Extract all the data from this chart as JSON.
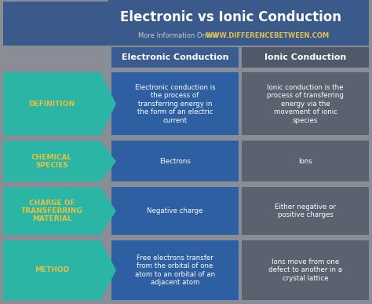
{
  "title": "Electronic vs Ionic Conduction",
  "subtitle_plain": "More Information Online",
  "subtitle_url": "WWW.DIFFERENCEBETWEEN.COM",
  "header_col1": "Electronic Conduction",
  "header_col2": "Ionic Conduction",
  "bg_color": "#888d96",
  "header_bg": "#3b5a8c",
  "title_text_color": "#ffffff",
  "subtitle_plain_color": "#c8c8c8",
  "subtitle_url_color": "#e8c040",
  "col1_bg": "#2e5fa3",
  "col2_bg": "#5a6270",
  "col_header1_bg": "#3a5c90",
  "col_header2_bg": "#4e5a6a",
  "col_text_color": "#ffffff",
  "arrow_color": "#2ab5a5",
  "arrow_text_color": "#e8c040",
  "rows": [
    {
      "label": "DEFINITION",
      "col1": "Electronic conduction is\nthe process of\ntransferring energy in\nthe form of an electric\ncurrent",
      "col2": "Ionic conduction is the\nprocess of transferring\nenergy via the\nmovement of ionic\nspecies"
    },
    {
      "label": "CHEMICAL\nSPECIES",
      "col1": "Electrons",
      "col2": "Ions"
    },
    {
      "label": "CHARGE OF\nTRANSFERRING\nMATERIAL",
      "col1": "Negative charge",
      "col2": "Either negative or\npositive charges"
    },
    {
      "label": "METHOD",
      "col1": "Free electrons transfer\nfrom the orbital of one\natom to an orbital of an\nadjacent atom",
      "col2": "Ions move from one\ndefect to another in a\ncrystal lattice"
    }
  ]
}
